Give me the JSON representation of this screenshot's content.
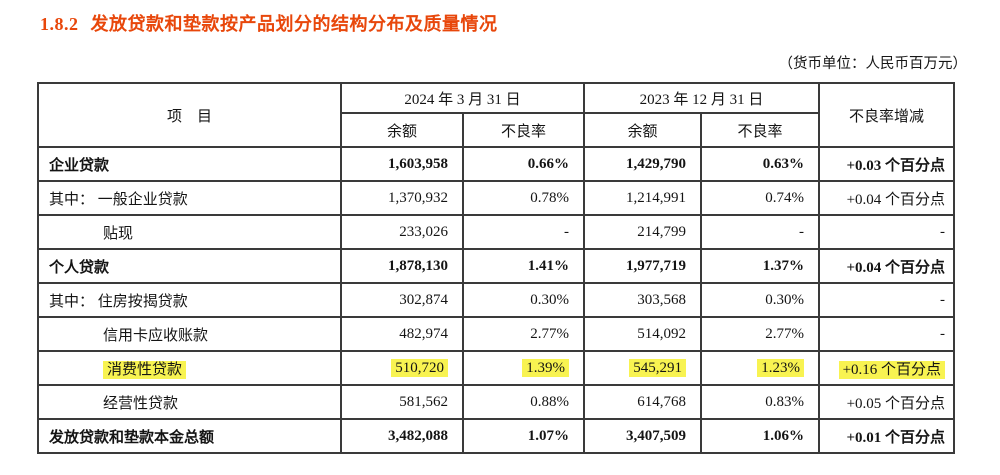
{
  "section": {
    "number": "1.8.2",
    "title": "发放贷款和垫款按产品划分的结构分布及质量情况"
  },
  "unit_note": "（货币单位：人民币百万元）",
  "table": {
    "headers": {
      "item": "项　目",
      "date_2024": "2024 年 3 月 31 日",
      "date_2023": "2023 年 12 月 31 日",
      "balance_2024": "余额",
      "npl_2024": "不良率",
      "balance_2023": "余额",
      "npl_2023": "不良率",
      "npl_change": "不良率增减"
    },
    "rows": [
      {
        "label": "企业贷款",
        "balance_2024": "1,603,958",
        "npl_2024": "0.66%",
        "balance_2023": "1,429,790",
        "npl_2023": "0.63%",
        "change": "+0.03 个百分点"
      },
      {
        "label": "其中： 一般企业贷款",
        "balance_2024": "1,370,932",
        "npl_2024": "0.78%",
        "balance_2023": "1,214,991",
        "npl_2023": "0.74%",
        "change": "+0.04 个百分点"
      },
      {
        "label": "贴现",
        "balance_2024": "233,026",
        "npl_2024": "-",
        "balance_2023": "214,799",
        "npl_2023": "-",
        "change": "-"
      },
      {
        "label": "个人贷款",
        "balance_2024": "1,878,130",
        "npl_2024": "1.41%",
        "balance_2023": "1,977,719",
        "npl_2023": "1.37%",
        "change": "+0.04 个百分点"
      },
      {
        "label": "其中： 住房按揭贷款",
        "balance_2024": "302,874",
        "npl_2024": "0.30%",
        "balance_2023": "303,568",
        "npl_2023": "0.30%",
        "change": "-"
      },
      {
        "label": "信用卡应收账款",
        "balance_2024": "482,974",
        "npl_2024": "2.77%",
        "balance_2023": "514,092",
        "npl_2023": "2.77%",
        "change": "-"
      },
      {
        "label": "消费性贷款",
        "balance_2024": "510,720",
        "npl_2024": "1.39%",
        "balance_2023": "545,291",
        "npl_2023": "1.23%",
        "change": "+0.16 个百分点"
      },
      {
        "label": "经营性贷款",
        "balance_2024": "581,562",
        "npl_2024": "0.88%",
        "balance_2023": "614,768",
        "npl_2023": "0.83%",
        "change": "+0.05 个百分点"
      },
      {
        "label": "发放贷款和垫款本金总额",
        "balance_2024": "3,482,088",
        "npl_2024": "1.07%",
        "balance_2023": "3,407,509",
        "npl_2023": "1.06%",
        "change": "+0.01 个百分点"
      }
    ]
  },
  "colors": {
    "title": "#e8470b",
    "highlight": "#f8f351"
  }
}
